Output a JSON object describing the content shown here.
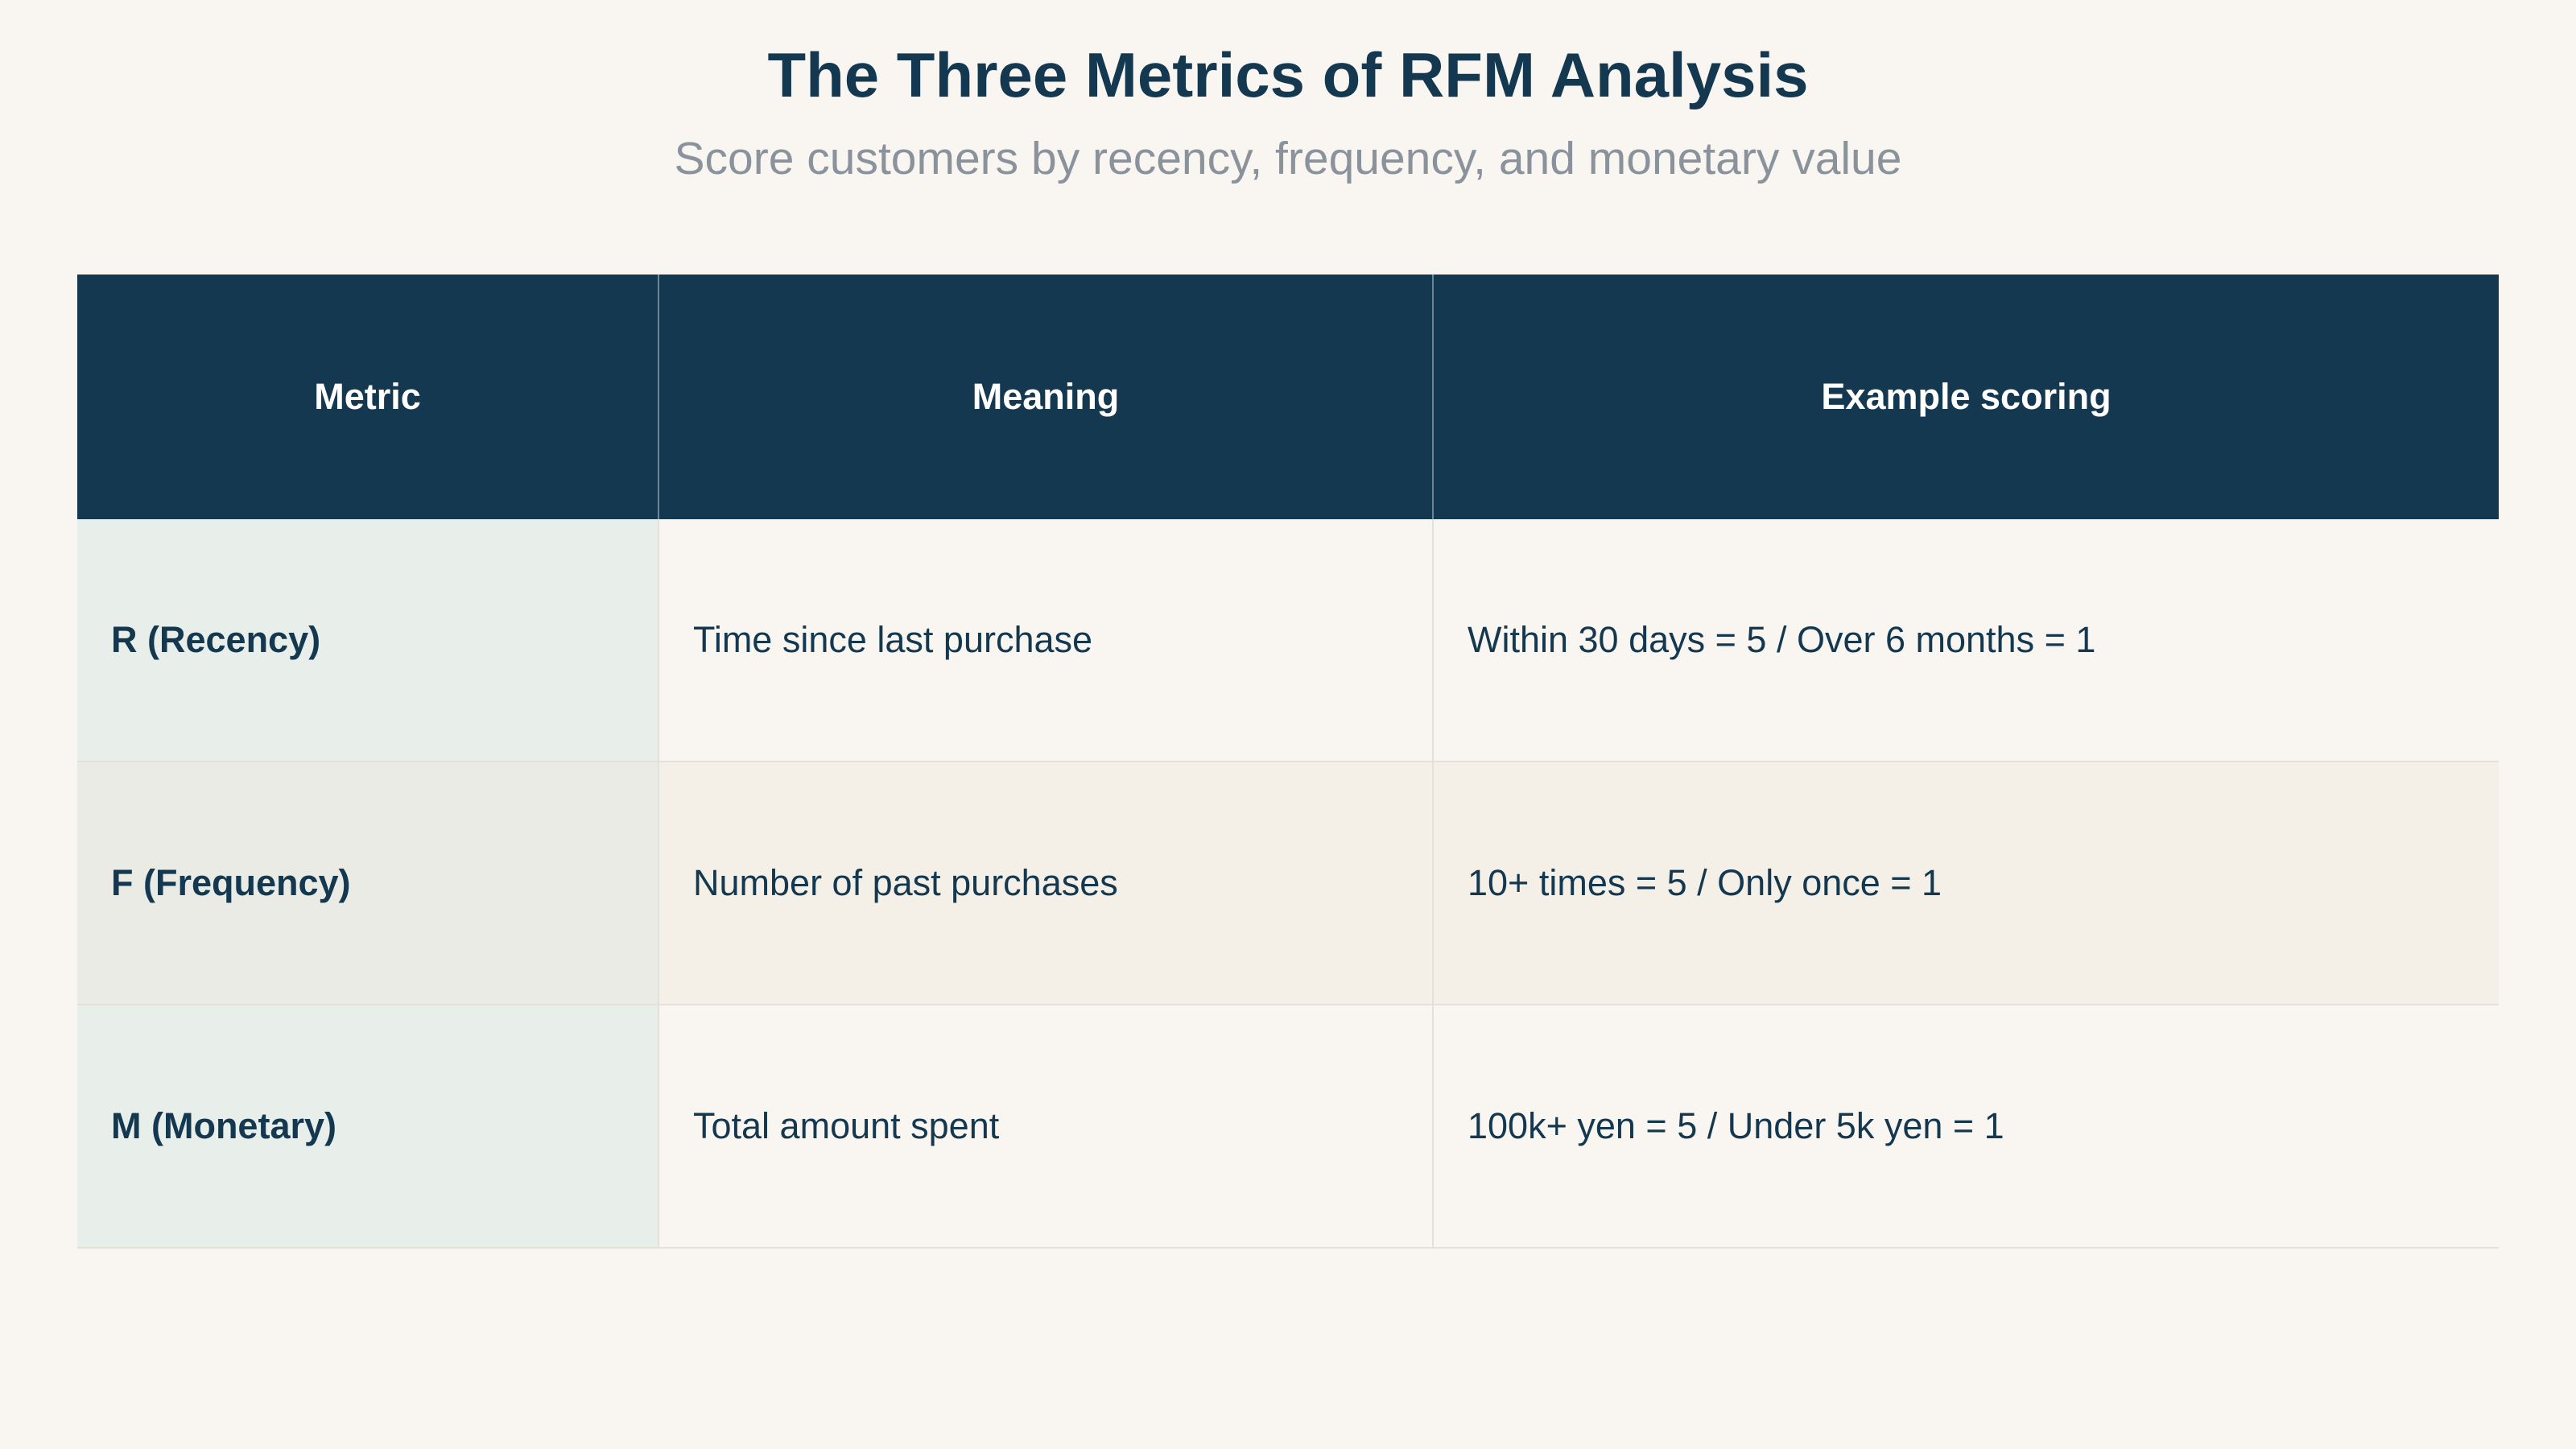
{
  "header": {
    "title": "The Three Metrics of RFM Analysis",
    "subtitle": "Score customers by recency, frequency, and monetary value"
  },
  "table": {
    "columns": [
      "Metric",
      "Meaning",
      "Example scoring"
    ],
    "rows": [
      [
        "R (Recency)",
        "Time since last purchase",
        "Within 30 days = 5 / Over 6 months = 1"
      ],
      [
        "F (Frequency)",
        "Number of past purchases",
        "10+ times = 5 / Only once = 1"
      ],
      [
        "M (Monetary)",
        "Total amount spent",
        "100k+ yen = 5 / Under 5k yen = 1"
      ]
    ]
  }
}
